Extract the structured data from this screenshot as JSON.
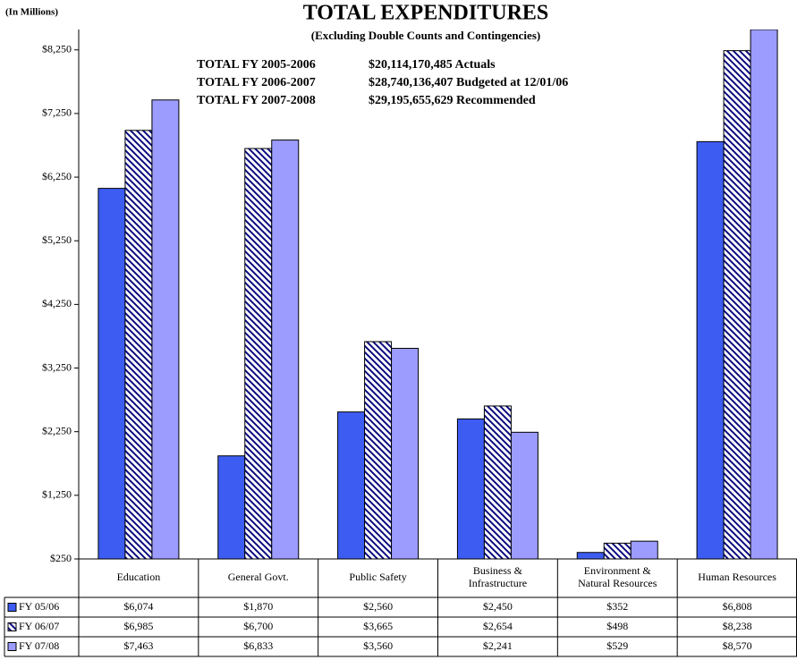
{
  "chart_data": {
    "type": "bar",
    "unit_note": "(In Millions)",
    "title": "TOTAL EXPENDITURES",
    "subtitle": "(Excluding Double Counts and Contingencies)",
    "annotations": [
      {
        "label": "TOTAL FY 2005-2006",
        "text": "$20,114,170,485 Actuals"
      },
      {
        "label": "TOTAL FY 2006-2007",
        "text": "$28,740,136,407 Budgeted at 12/01/06"
      },
      {
        "label": "TOTAL FY 2007-2008",
        "text": "$29,195,655,629 Recommended"
      }
    ],
    "categories": [
      "Education",
      "General Govt.",
      "Public Safety",
      "Business &\nInfrastructure",
      "Environment &\nNatural Resources",
      "Human Resources"
    ],
    "series": [
      {
        "name": "FY 05/06",
        "color": "#3d5cf2",
        "values": [
          6074,
          1870,
          2560,
          2450,
          352,
          6808
        ],
        "value_labels": [
          "$6,074",
          "$1,870",
          "$2,560",
          "$2,450",
          "$352",
          "$6,808"
        ]
      },
      {
        "name": "FY 06/07",
        "color": "hatch",
        "values": [
          6985,
          6700,
          3665,
          2654,
          498,
          8238
        ],
        "value_labels": [
          "$6,985",
          "$6,700",
          "$3,665",
          "$2,654",
          "$498",
          "$8,238"
        ]
      },
      {
        "name": "FY 07/08",
        "color": "#9c9cff",
        "values": [
          7463,
          6833,
          3560,
          2241,
          529,
          8570
        ],
        "value_labels": [
          "$7,463",
          "$6,833",
          "$3,560",
          "$2,241",
          "$529",
          "$8,570"
        ]
      }
    ],
    "ylim": [
      250,
      8570
    ],
    "yticks": [
      {
        "value": 250,
        "label": "$250"
      },
      {
        "value": 1250,
        "label": "$1,250"
      },
      {
        "value": 2250,
        "label": "$2,250"
      },
      {
        "value": 3250,
        "label": "$3,250"
      },
      {
        "value": 4250,
        "label": "$4,250"
      },
      {
        "value": 5250,
        "label": "$5,250"
      },
      {
        "value": 6250,
        "label": "$6,250"
      },
      {
        "value": 7250,
        "label": "$7,250"
      },
      {
        "value": 8250,
        "label": "$8,250"
      }
    ]
  }
}
